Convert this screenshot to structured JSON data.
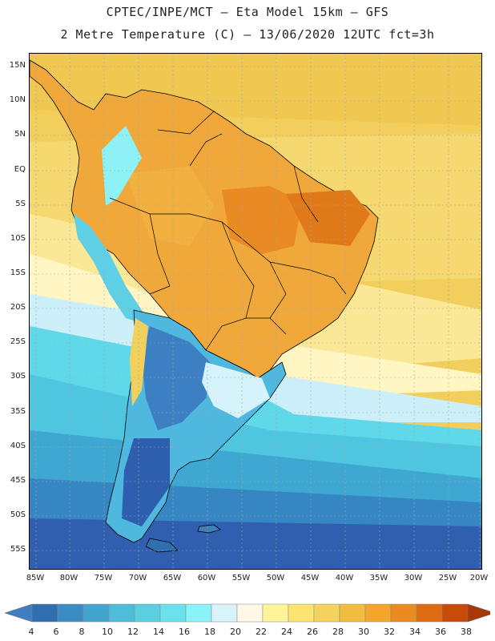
{
  "header": {
    "line1": "CPTEC/INPE/MCT –  Eta Model 15km – GFS",
    "line2": "2 Metre Temperature (C) – 13/06/2020 12UTC fct=3h"
  },
  "axes": {
    "lat_labels": [
      "15N",
      "10N",
      "5N",
      "EQ",
      "5S",
      "10S",
      "15S",
      "20S",
      "25S",
      "30S",
      "35S",
      "40S",
      "45S",
      "50S",
      "55S"
    ],
    "lon_labels": [
      "85W",
      "80W",
      "75W",
      "70W",
      "65W",
      "60W",
      "55W",
      "50W",
      "45W",
      "40W",
      "35W",
      "30W",
      "25W",
      "20W"
    ]
  },
  "colorbar": {
    "labels": [
      "4",
      "6",
      "8",
      "10",
      "12",
      "14",
      "16",
      "18",
      "20",
      "22",
      "24",
      "26",
      "28",
      "30",
      "32",
      "34",
      "36",
      "38"
    ],
    "colors": [
      "#3f7fc0",
      "#2f6fb0",
      "#3b8cc4",
      "#44a4d0",
      "#50bcdc",
      "#5acfe0",
      "#6ae2ee",
      "#8af2f8",
      "#d8f4fb",
      "#fff8e4",
      "#fff49a",
      "#fbe570",
      "#f5d25e",
      "#f0bd3e",
      "#f3a62a",
      "#e98b1e",
      "#df6b10",
      "#c84b0a",
      "#a8380a"
    ]
  },
  "colors": {
    "ocean_north": "#f1cd5a",
    "ocean_south": "#2c5da8",
    "land_outline": "#000000"
  }
}
